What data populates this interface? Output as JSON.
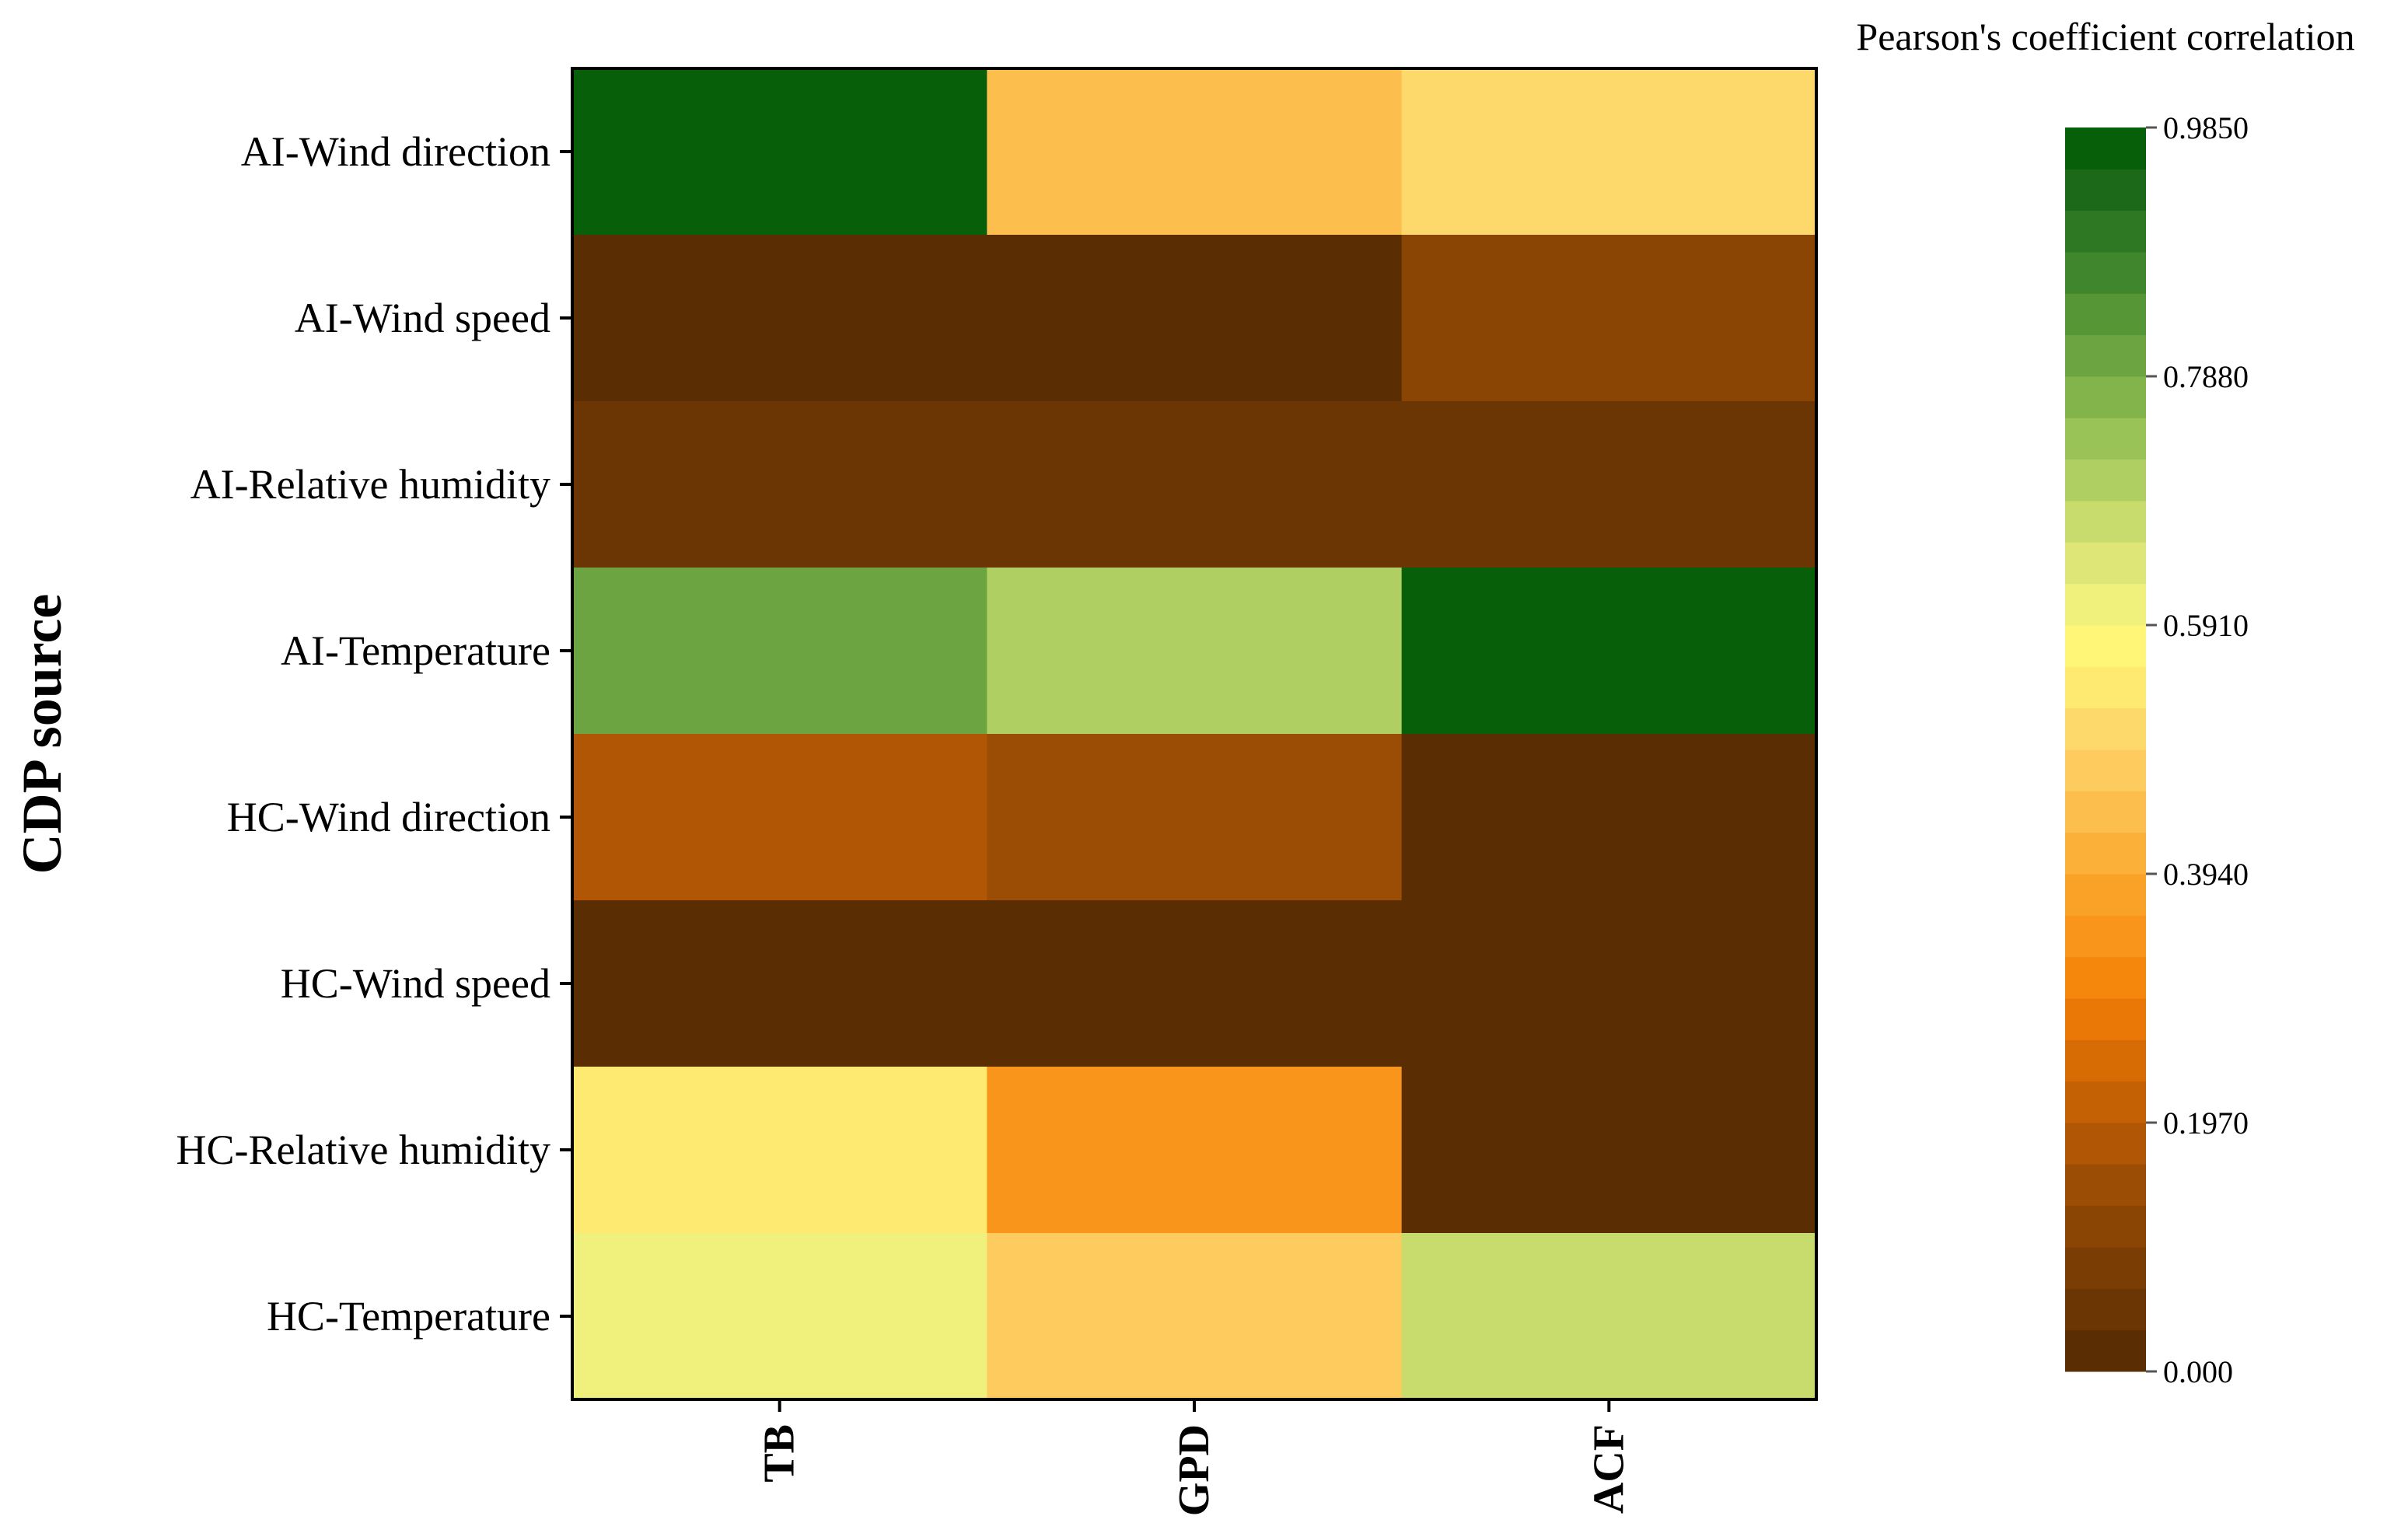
{
  "chart_data": {
    "type": "heatmap",
    "ylabel": "CDP source",
    "xlabel": "",
    "rows": [
      "AI-Wind direction",
      "AI-Wind speed",
      "AI-Relative humidity",
      "AI-Temperature",
      "HC-Wind direction",
      "HC-Wind speed",
      "HC-Relative humidity",
      "HC-Temperature"
    ],
    "columns": [
      "TB",
      "GPD",
      "ACF"
    ],
    "values": [
      [
        0.985,
        0.45,
        0.52
      ],
      [
        0.02,
        0.03,
        0.1
      ],
      [
        0.04,
        0.04,
        0.04
      ],
      [
        0.82,
        0.7,
        0.985
      ],
      [
        0.18,
        0.15,
        0.02
      ],
      [
        0.03,
        0.01,
        0.01
      ],
      [
        0.53,
        0.33,
        0.01
      ],
      [
        0.6,
        0.46,
        0.66
      ]
    ],
    "colorbar": {
      "title": "Pearson's coefficient correlation",
      "min": 0.0,
      "max": 0.985,
      "ticks": [
        0.0,
        0.197,
        0.394,
        0.591,
        0.788,
        0.985
      ],
      "tick_labels": [
        "0.000",
        "0.1970",
        "0.3940",
        "0.5910",
        "0.7880",
        "0.9850"
      ],
      "levels": 30,
      "colors": [
        "#5a2e02",
        "#6b3603",
        "#7a3d03",
        "#8a4404",
        "#9c4d05",
        "#b05604",
        "#c46104",
        "#d86c04",
        "#ea7806",
        "#f5870c",
        "#f8951a",
        "#faa228",
        "#fbb03a",
        "#fcbe4c",
        "#fdcb5e",
        "#fdd86b",
        "#feea70",
        "#fff677",
        "#f0f07c",
        "#dde677",
        "#c8dc6e",
        "#b0cf62",
        "#9ac357",
        "#83b44b",
        "#6ca441",
        "#569637",
        "#40862c",
        "#2e7823",
        "#1c6a19",
        "#075f0a"
      ]
    }
  }
}
